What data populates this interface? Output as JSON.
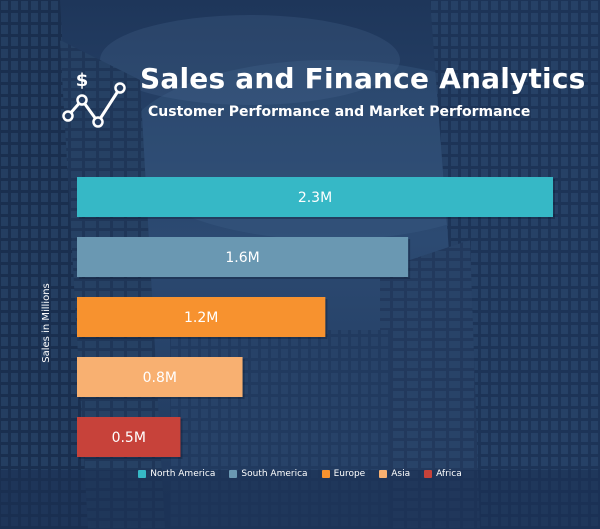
{
  "header": {
    "title": "Sales and Finance Analytics",
    "subtitle": "Customer Performance and Market Performance"
  },
  "chart_data": {
    "type": "bar",
    "orientation": "horizontal",
    "title": "Sales and Finance Analytics",
    "subtitle": "Customer Performance and Market Performance",
    "xlabel": "",
    "ylabel": "Sales in Millions",
    "xlim": [
      0,
      2.3
    ],
    "grid": false,
    "legend_position": "bottom",
    "series": [
      {
        "name": "North America",
        "value": 2.3,
        "label": "2.3M",
        "color": "#36b8c6"
      },
      {
        "name": "South America",
        "value": 1.6,
        "label": "1.6M",
        "color": "#6a98b2"
      },
      {
        "name": "Europe",
        "value": 1.2,
        "label": "1.2M",
        "color": "#f7922f"
      },
      {
        "name": "Asia",
        "value": 0.8,
        "label": "0.8M",
        "color": "#f8b071"
      },
      {
        "name": "Africa",
        "value": 0.5,
        "label": "0.5M",
        "color": "#c7423a"
      }
    ]
  }
}
